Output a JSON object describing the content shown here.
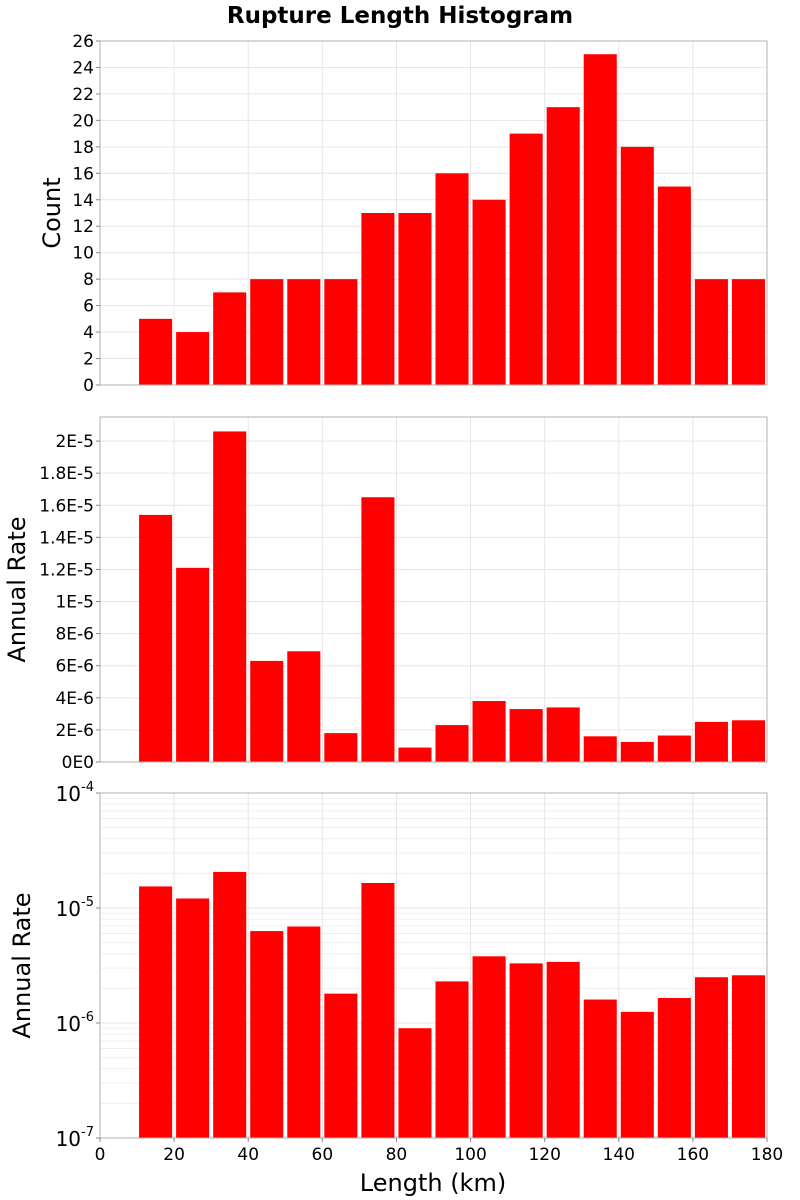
{
  "chart_data": {
    "type": "bar",
    "title": "Rupture Length Histogram",
    "bar_color": "#ff0000",
    "grid": true,
    "x": {
      "label": "Length (km)",
      "lim": [
        0,
        180
      ],
      "ticks": [
        0,
        20,
        40,
        60,
        80,
        100,
        120,
        140,
        160,
        180
      ],
      "tick_labels": [
        "0",
        "20",
        "40",
        "60",
        "80",
        "100",
        "120",
        "140",
        "160",
        "180"
      ],
      "bin_width": 10,
      "bin_centers": [
        15,
        25,
        35,
        45,
        55,
        65,
        75,
        85,
        95,
        105,
        115,
        125,
        135,
        145,
        155,
        165,
        175
      ]
    },
    "panels": [
      {
        "id": "count",
        "ylabel": "Count",
        "yscale": "linear",
        "ylim": [
          0,
          26
        ],
        "yticks": [
          0,
          2,
          4,
          6,
          8,
          10,
          12,
          14,
          16,
          18,
          20,
          22,
          24,
          26
        ],
        "ytick_labels": [
          "0",
          "2",
          "4",
          "6",
          "8",
          "10",
          "12",
          "14",
          "16",
          "18",
          "20",
          "22",
          "24",
          "26"
        ],
        "values": [
          5,
          4,
          7,
          8,
          8,
          8,
          13,
          13,
          16,
          14,
          19,
          21,
          25,
          18,
          15,
          8,
          8
        ]
      },
      {
        "id": "rate-linear",
        "ylabel": "Annual Rate",
        "yscale": "linear",
        "ylim": [
          0,
          2.15e-05
        ],
        "yticks": [
          0,
          2e-06,
          4e-06,
          6e-06,
          8e-06,
          1e-05,
          1.2e-05,
          1.4e-05,
          1.6e-05,
          1.8e-05,
          2e-05
        ],
        "ytick_labels": [
          "0E0",
          "2E-6",
          "4E-6",
          "6E-6",
          "8E-6",
          "1E-5",
          "1.2E-5",
          "1.4E-5",
          "1.6E-5",
          "1.8E-5",
          "2E-5"
        ],
        "values": [
          1.54e-05,
          1.21e-05,
          2.06e-05,
          6.3e-06,
          6.9e-06,
          1.8e-06,
          1.65e-05,
          9e-07,
          2.3e-06,
          3.8e-06,
          3.3e-06,
          3.4e-06,
          1.6e-06,
          1.25e-06,
          1.65e-06,
          2.5e-06,
          2.6e-06
        ]
      },
      {
        "id": "rate-log",
        "ylabel": "Annual Rate",
        "yscale": "log",
        "ylim": [
          1e-07,
          0.0001
        ],
        "yticks": [
          1e-07,
          1e-06,
          1e-05,
          0.0001
        ],
        "ytick_labels": [
          {
            "base": "10",
            "exp": "-7"
          },
          {
            "base": "10",
            "exp": "-6"
          },
          {
            "base": "10",
            "exp": "-5"
          },
          {
            "base": "10",
            "exp": "-4"
          }
        ],
        "values": [
          1.54e-05,
          1.21e-05,
          2.06e-05,
          6.3e-06,
          6.9e-06,
          1.8e-06,
          1.65e-05,
          9e-07,
          2.3e-06,
          3.8e-06,
          3.3e-06,
          3.4e-06,
          1.6e-06,
          1.25e-06,
          1.65e-06,
          2.5e-06,
          2.6e-06
        ]
      }
    ]
  }
}
